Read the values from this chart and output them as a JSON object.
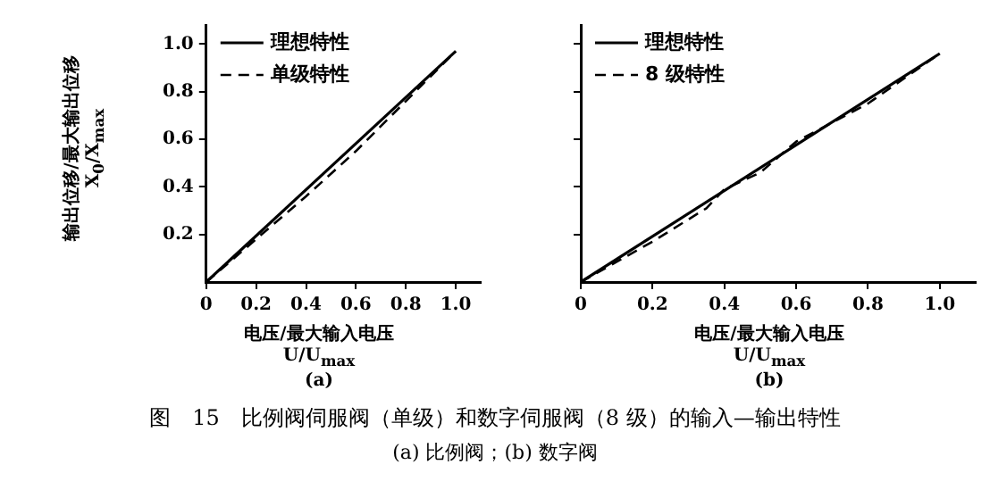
{
  "chart_data": [
    {
      "type": "line",
      "xlabel": "电压/最大输入电压\nU/U$_{max}$",
      "ylabel": "输出位移/最大输出位移\nX$_{0}$/X$_{max}$",
      "xlim": [
        0,
        1.1
      ],
      "xticks": [
        0,
        0.2,
        0.4,
        0.6,
        0.8,
        {
          "value": 1.0,
          "label": "1.0"
        }
      ],
      "ylim": [
        0,
        1.08
      ],
      "yticks": [
        0.2,
        0.4,
        0.6,
        0.8,
        {
          "value": 1.0,
          "label": "1.0"
        }
      ],
      "legend": "top left",
      "marker": "none",
      "series": [
        {
          "name": "理想特性",
          "color": "#000000",
          "x": [
            0,
            1.0
          ],
          "values": [
            0,
            0.97
          ],
          "line_style": "solid"
        },
        {
          "name": "单级特性",
          "color": "#000000",
          "x": [
            0,
            0.2,
            0.4,
            0.6,
            0.8,
            1.0
          ],
          "values": [
            0,
            0.18,
            0.36,
            0.55,
            0.76,
            0.97
          ],
          "line_style": "dashed"
        }
      ],
      "annotations": [
        "(a)",
        "图　15　比例阀伺服阀（单级）和数字伺服阀（8 级）的输入—输出特性",
        "(a) 比例阀；(b) 数字阀"
      ]
    },
    {
      "type": "line",
      "xlabel": "电压/最大输入电压\nU/U$_{max}$",
      "xlim": [
        0,
        1.1
      ],
      "xticks": [
        0,
        0.2,
        0.4,
        0.6,
        0.8,
        {
          "value": 1.0,
          "label": "1.0"
        }
      ],
      "ylim": [
        0,
        1.08
      ],
      "yticks": [
        {
          "value": 0.2,
          "label": null
        },
        {
          "value": 0.4,
          "label": null
        },
        {
          "value": 0.6,
          "label": null
        },
        {
          "value": 0.8,
          "label": null
        },
        {
          "value": 1.0,
          "label": null
        }
      ],
      "tick_labels": "x",
      "legend": "top left",
      "marker": "none",
      "series": [
        {
          "name": "理想特性",
          "color": "#000000",
          "x": [
            0,
            1.0
          ],
          "values": [
            0,
            0.96
          ],
          "line_style": "solid"
        },
        {
          "name": "8 级特性",
          "color": "#000000",
          "x": [
            0,
            0.2,
            0.35,
            0.4,
            0.5,
            0.6,
            0.8,
            1.0
          ],
          "values": [
            0,
            0.17,
            0.31,
            0.39,
            0.46,
            0.59,
            0.75,
            0.96
          ],
          "line_style": "dashed"
        }
      ],
      "annotations": [
        "(b)"
      ]
    }
  ]
}
